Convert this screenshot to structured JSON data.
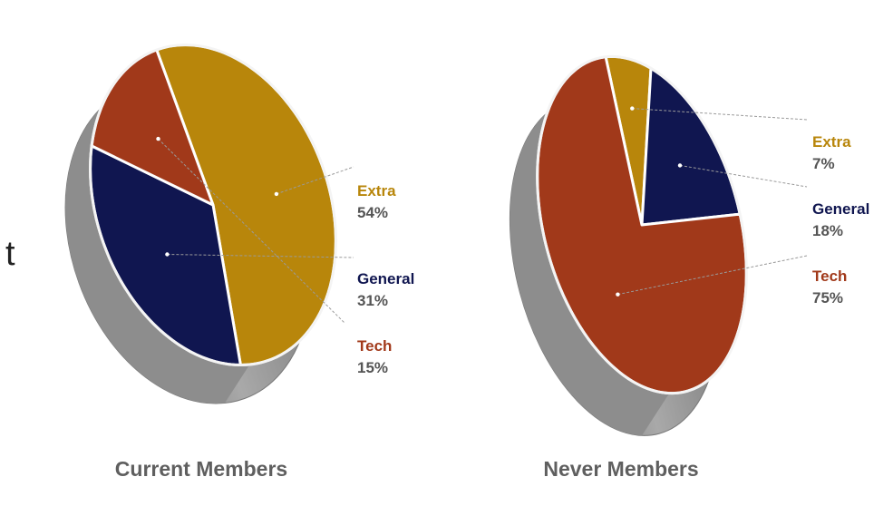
{
  "stray_text": "t",
  "chart_data": [
    {
      "type": "pie",
      "title": "Current Members",
      "slices": [
        {
          "label": "Extra",
          "value": 54,
          "value_label": "54%",
          "color": "#b8860b"
        },
        {
          "label": "General",
          "value": 31,
          "value_label": "31%",
          "color": "#101650"
        },
        {
          "label": "Tech",
          "value": 15,
          "value_label": "15%",
          "color": "#a1391a"
        }
      ],
      "side_color": "#8f8f8f"
    },
    {
      "type": "pie",
      "title": "Never Members",
      "slices": [
        {
          "label": "Extra",
          "value": 7,
          "value_label": "7%",
          "color": "#b8860b"
        },
        {
          "label": "General",
          "value": 18,
          "value_label": "18%",
          "color": "#101650"
        },
        {
          "label": "Tech",
          "value": 75,
          "value_label": "75%",
          "color": "#a1391a"
        }
      ],
      "side_color": "#8f8f8f"
    }
  ]
}
